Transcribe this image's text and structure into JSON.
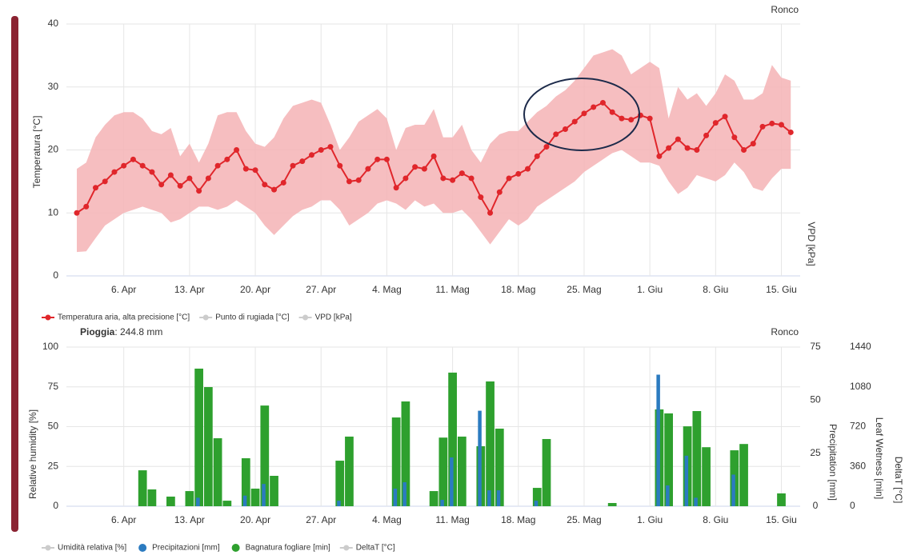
{
  "chart_data": [
    {
      "type": "line",
      "title": "Ronco",
      "ylabel": "Temperatura [°C]",
      "y2label": "VPD [kPa]",
      "categories": [
        null,
        null,
        null,
        null,
        null,
        "6. Apr",
        null,
        null,
        null,
        null,
        null,
        null,
        "13. Apr",
        null,
        null,
        null,
        null,
        null,
        null,
        "20. Apr",
        null,
        null,
        null,
        null,
        null,
        null,
        "27. Apr",
        null,
        null,
        null,
        null,
        null,
        null,
        "4. Mag",
        null,
        null,
        null,
        null,
        null,
        null,
        "11. Mag",
        null,
        null,
        null,
        null,
        null,
        null,
        "18. Mag",
        null,
        null,
        null,
        null,
        null,
        null,
        "25. Mag",
        null,
        null,
        null,
        null,
        null,
        null,
        "1. Giu",
        null,
        null,
        null,
        null,
        null,
        null,
        "8. Giu",
        null,
        null,
        null,
        null,
        null,
        null,
        "15. Giu",
        null
      ],
      "ylim": [
        0,
        40
      ],
      "yticks": [
        0,
        10,
        20,
        30,
        40
      ],
      "grid": true,
      "legend": "bottom-left",
      "series": [
        {
          "name": "Temperatura aria, alta precisione [°C]",
          "color": "#e0262b",
          "band_color": "#f4b3b5",
          "values": [
            10,
            11,
            14,
            15,
            16.5,
            17.5,
            18.5,
            17.5,
            16.5,
            14.5,
            16,
            14.3,
            15.5,
            13.5,
            15.5,
            17.5,
            18.5,
            20,
            17,
            16.8,
            14.5,
            13.7,
            14.8,
            17.5,
            18.2,
            19.2,
            20,
            20.5,
            17.5,
            15,
            15.2,
            17,
            18.5,
            18.5,
            14,
            15.5,
            17.3,
            17,
            19,
            15.5,
            15.2,
            16.3,
            15.5,
            12.5,
            10,
            13.3,
            15.5,
            16.2,
            17,
            19,
            20.5,
            22.5,
            23.3,
            24.5,
            25.8,
            26.8,
            27.5,
            26,
            25,
            24.8,
            25.5,
            25,
            19,
            20.3,
            21.7,
            20.3,
            20,
            22.3,
            24.3,
            25.3,
            22,
            20,
            21,
            23.7,
            24.2,
            24,
            22.8
          ],
          "high": [
            17,
            18,
            22,
            24,
            25.5,
            26,
            26,
            25,
            23,
            22.5,
            23.5,
            19,
            21,
            18,
            21,
            25.5,
            26,
            26,
            23,
            21,
            20.5,
            22,
            25,
            27,
            27.5,
            28,
            27.5,
            24,
            20,
            22,
            24.5,
            25.5,
            26.5,
            25,
            20,
            23.5,
            24,
            24,
            26.5,
            22,
            22,
            24,
            20,
            18,
            21,
            22.5,
            23,
            23,
            24.5,
            26,
            27,
            28.5,
            29.5,
            31,
            33,
            35,
            35.5,
            36,
            35,
            32,
            33,
            34,
            33,
            25,
            30,
            28,
            29,
            27,
            29,
            32,
            31,
            28,
            28,
            29,
            33.5,
            31.5,
            31
          ],
          "low": [
            3.8,
            3.9,
            6,
            8,
            9,
            10,
            10.5,
            11,
            10.5,
            10,
            8.5,
            9,
            10,
            11,
            11,
            10.5,
            11,
            12,
            11,
            10,
            8,
            6.5,
            8,
            9.5,
            10.5,
            11,
            12,
            12,
            10.5,
            8,
            9,
            10,
            11.5,
            12,
            11.5,
            10.5,
            12,
            11,
            11.5,
            10,
            10,
            10.5,
            9,
            7,
            5,
            7,
            9,
            8,
            9,
            11,
            12,
            13,
            14,
            15,
            16.5,
            17.5,
            18.5,
            19.5,
            20,
            19,
            18,
            18,
            17.5,
            15,
            13,
            14,
            16,
            15.5,
            15,
            16,
            18,
            16.5,
            14,
            13.5,
            15.5,
            17,
            17
          ]
        }
      ],
      "hidden_series": [
        {
          "name": "Punto di rugiada [°C]"
        },
        {
          "name": "VPD [kPa]"
        }
      ]
    },
    {
      "type": "bar",
      "title": "Ronco",
      "annotation": {
        "label": "Pioggia",
        "text": ": 244.8 mm"
      },
      "ylabel": "Relative humidity [%]",
      "y2label": "Precipitation [mm]",
      "y3label": "Leaf Wetness [min]",
      "y4label": "DeltaT [°C]",
      "categories": [
        null,
        null,
        null,
        null,
        null,
        "6. Apr",
        null,
        null,
        null,
        null,
        null,
        null,
        "13. Apr",
        null,
        null,
        null,
        null,
        null,
        null,
        "20. Apr",
        null,
        null,
        null,
        null,
        null,
        null,
        "27. Apr",
        null,
        null,
        null,
        null,
        null,
        null,
        "4. Mag",
        null,
        null,
        null,
        null,
        null,
        null,
        "11. Mag",
        null,
        null,
        null,
        null,
        null,
        null,
        "18. Mag",
        null,
        null,
        null,
        null,
        null,
        null,
        "25. Mag",
        null,
        null,
        null,
        null,
        null,
        null,
        "1. Giu",
        null,
        null,
        null,
        null,
        null,
        null,
        "8. Giu",
        null,
        null,
        null,
        null,
        null,
        null,
        "15. Giu",
        null
      ],
      "ylim": [
        0,
        100
      ],
      "yticks": [
        0,
        25,
        50,
        75,
        100
      ],
      "y2lim": [
        0,
        75
      ],
      "y2ticks": [
        0,
        25,
        50,
        75
      ],
      "y3lim": [
        0,
        1440
      ],
      "y3ticks": [
        0,
        360,
        720,
        1080,
        1440
      ],
      "grid": true,
      "legend": "bottom-left",
      "series": [
        {
          "name": "Precipitazioni [mm]",
          "color": "#2b7bc0",
          "axis": "y2",
          "values": [
            0,
            0,
            0,
            0,
            0,
            0,
            0,
            0,
            0,
            0,
            0,
            0,
            0,
            4,
            0,
            0,
            0,
            0,
            5,
            0,
            10.5,
            0,
            0,
            0,
            0,
            0,
            0,
            0,
            2.6,
            0,
            0,
            0,
            0,
            0,
            8.3,
            11.3,
            0,
            0,
            0,
            3,
            23,
            0,
            0,
            45,
            7.5,
            7.5,
            0,
            0,
            0,
            2.6,
            0,
            0,
            0,
            0,
            0,
            0,
            0,
            0,
            0,
            0,
            0,
            0,
            62,
            9.8,
            0,
            23.8,
            4,
            0,
            0,
            0,
            14.9,
            0,
            0,
            0,
            0,
            0,
            0
          ]
        },
        {
          "name": "Bagnatura fogliare [min]",
          "color": "#2ea02e",
          "axis": "y3",
          "values": [
            0,
            0,
            0,
            0,
            0,
            0,
            0,
            325,
            152,
            0,
            87,
            0,
            137,
            1245,
            1078,
            615,
            50,
            0,
            434,
            159,
            911,
            275,
            0,
            0,
            0,
            0,
            0,
            0,
            412,
            630,
            0,
            0,
            0,
            0,
            803,
            948,
            0,
            0,
            137,
            621,
            1209,
            630,
            0,
            543,
            1129,
            702,
            0,
            0,
            0,
            166,
            608,
            0,
            0,
            0,
            0,
            0,
            0,
            29,
            0,
            0,
            0,
            0,
            876,
            840,
            0,
            723,
            861,
            534,
            0,
            0,
            506,
            563,
            0,
            0,
            0,
            116,
            0
          ]
        }
      ],
      "hidden_series": [
        {
          "name": "Umidità relativa [%]"
        },
        {
          "name": "DeltaT [°C]"
        }
      ]
    }
  ]
}
